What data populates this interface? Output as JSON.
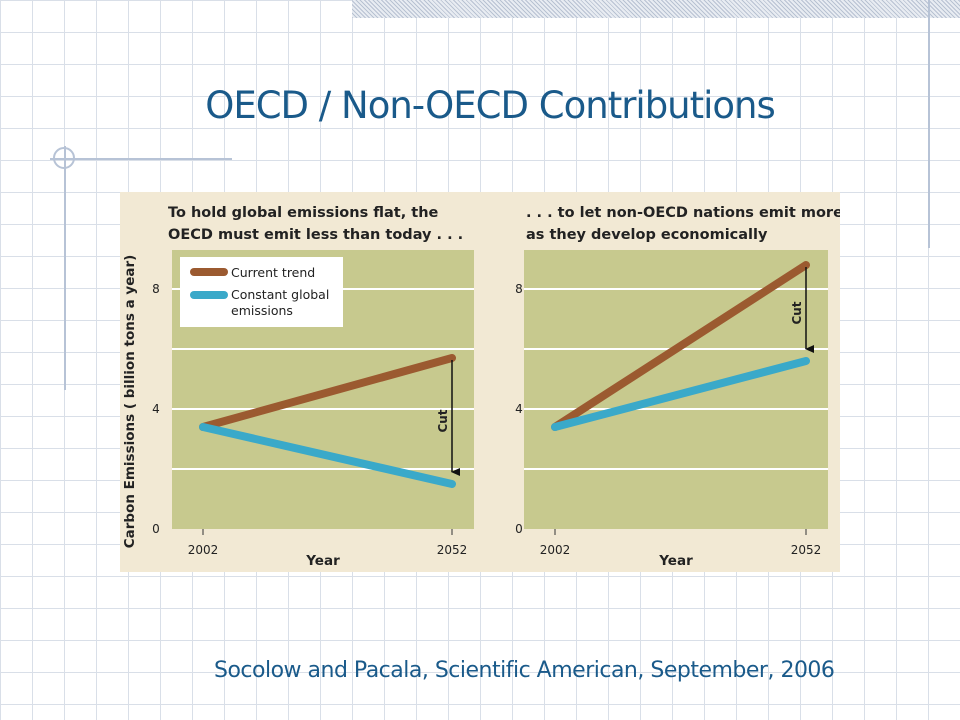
{
  "slide": {
    "title": "OECD / Non-OECD Contributions",
    "caption": "Socolow and Pacala, Scientific American, September, 2006"
  },
  "colors": {
    "current_trend": "#9b5a30",
    "constant_global": "#3aa9c9",
    "plot_background": "#c7c98e",
    "title_text": "#1a5a8a"
  },
  "chart_data": [
    {
      "type": "line",
      "title": "To hold global emissions flat, the OECD must emit less than today . . .",
      "title_lines": [
        "To hold global emissions flat, the",
        "OECD must emit less than today . . ."
      ],
      "xlabel": "Year",
      "ylabel": "Carbon Emissions ( billion tons a year)",
      "x": [
        2002,
        2052
      ],
      "xticks": [
        "2002",
        "2052"
      ],
      "yticks": [
        0,
        4,
        8
      ],
      "ylim": [
        0,
        9.3
      ],
      "grid": true,
      "legend_position": "top-left",
      "series": [
        {
          "name": "Current trend",
          "values": [
            3.4,
            5.7
          ]
        },
        {
          "name": "Constant global emissions",
          "values": [
            3.4,
            1.5
          ]
        }
      ],
      "annotations": [
        {
          "text": "Cut",
          "x": 2052,
          "from": 5.7,
          "to": 1.5
        }
      ]
    },
    {
      "type": "line",
      "title": ". . . to let non-OECD nations emit more as they develop economically",
      "title_lines": [
        ". . . to let non-OECD nations emit more",
        "as they develop economically"
      ],
      "xlabel": "Year",
      "ylabel": "",
      "x": [
        2002,
        2052
      ],
      "xticks": [
        "2002",
        "2052"
      ],
      "yticks": [
        0,
        4,
        8
      ],
      "ylim": [
        0,
        9.3
      ],
      "grid": true,
      "series": [
        {
          "name": "",
          "values": [
            3.4,
            8.8
          ]
        },
        {
          "name": "",
          "values": [
            3.4,
            5.6
          ]
        }
      ],
      "annotations": [
        {
          "text": "Cut",
          "x": 2052,
          "from": 8.8,
          "to": 5.6
        }
      ]
    }
  ]
}
